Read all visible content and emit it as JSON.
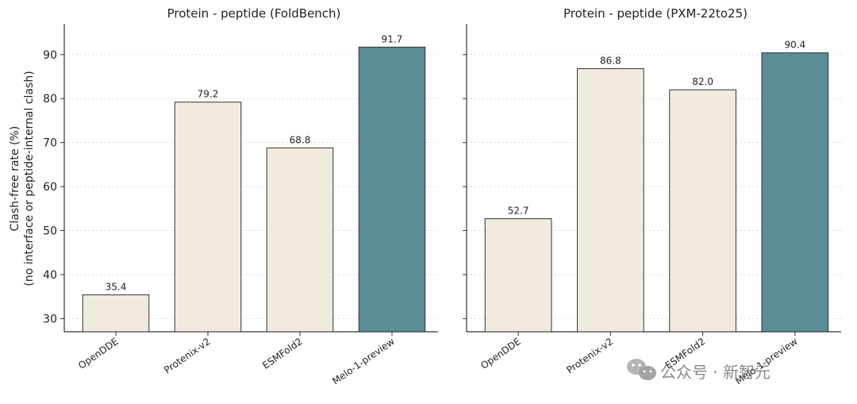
{
  "figure": {
    "ylabel_line1": "Clash-free rate (%)",
    "ylabel_line2": "(no interface or peptide-internal clash)"
  },
  "watermark": {
    "text": "公众号 · 新智元",
    "icon": "wechat-icon"
  },
  "colors": {
    "baseline_bar": "#f0ebdd",
    "highlight_bar": "#5b8d95",
    "bar_edge": "#333333",
    "grid": "#d9d9d9"
  },
  "chart_data": [
    {
      "type": "bar",
      "title": "Protein - peptide (FoldBench)",
      "categories": [
        "OpenDDE",
        "Protenix-v2",
        "ESMFold2",
        "Melo-1-preview"
      ],
      "values": [
        35.4,
        79.2,
        68.8,
        91.7
      ],
      "value_labels": [
        "35.4",
        "79.2",
        "68.8",
        "91.7"
      ],
      "highlight": [
        false,
        false,
        false,
        true
      ],
      "ylabel": "Clash-free rate (%)\n(no interface or peptide-internal clash)",
      "ylim": [
        27,
        97
      ],
      "yticks": [
        30,
        40,
        50,
        60,
        70,
        80,
        90
      ],
      "grid": "horizontal dotted",
      "legend": "none"
    },
    {
      "type": "bar",
      "title": "Protein - peptide (PXM-22to25)",
      "categories": [
        "OpenDDE",
        "Protenix-v2",
        "ESMFold2",
        "Melo-1-preview"
      ],
      "values": [
        52.7,
        86.8,
        82.0,
        90.4
      ],
      "value_labels": [
        "52.7",
        "86.8",
        "82.0",
        "90.4"
      ],
      "highlight": [
        false,
        false,
        false,
        true
      ],
      "ylim": [
        27,
        97
      ],
      "yticks": [
        30,
        40,
        50,
        60,
        70,
        80,
        90
      ],
      "ytick_labels": "hidden",
      "grid": "horizontal dotted",
      "legend": "none"
    }
  ]
}
